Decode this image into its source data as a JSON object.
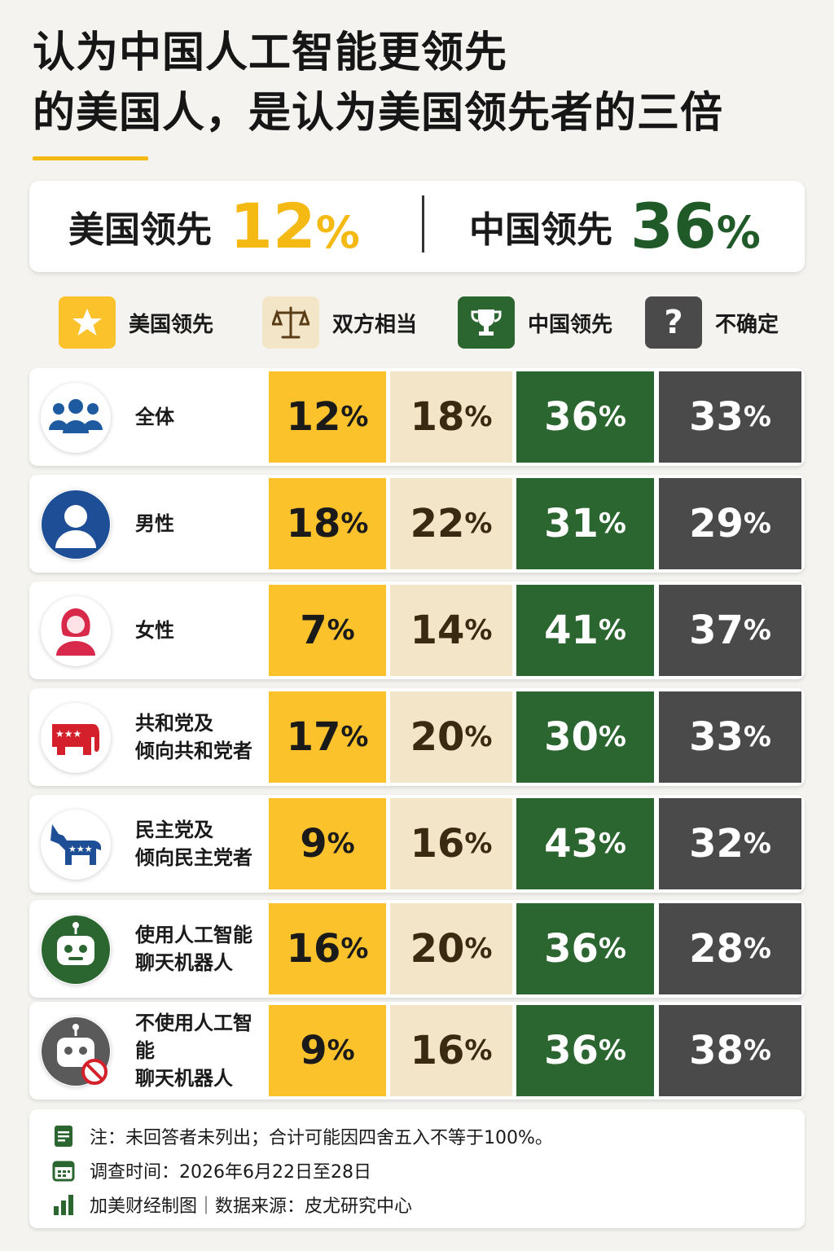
{
  "title": {
    "line1": "认为中国人工智能更领先",
    "line2": "的美国人，是认为美国领先者的三倍"
  },
  "summary": {
    "us_label": "美国领先",
    "us_value": "12",
    "cn_label": "中国领先",
    "cn_value": "36",
    "pct": "%"
  },
  "legend": [
    {
      "label": "美国领先",
      "icon": "star-icon",
      "color": "#fbc22c"
    },
    {
      "label": "双方相当",
      "icon": "scale-icon",
      "color": "#f3e6c8"
    },
    {
      "label": "中国领先",
      "icon": "trophy-icon",
      "color": "#2b6530"
    },
    {
      "label": "不确定",
      "icon": "question-icon",
      "color": "#4a4a4b"
    }
  ],
  "chart_data": {
    "type": "table",
    "columns": [
      "美国领先",
      "双方相当",
      "中国领先",
      "不确定"
    ],
    "unit": "%",
    "rows": [
      {
        "label": "全体",
        "icon": "group-icon",
        "values": [
          12,
          18,
          36,
          33
        ]
      },
      {
        "label": "男性",
        "icon": "male-icon",
        "values": [
          18,
          22,
          31,
          29
        ]
      },
      {
        "label": "女性",
        "icon": "female-icon",
        "values": [
          7,
          14,
          41,
          37
        ]
      },
      {
        "label": "共和党及\n倾向共和党者",
        "icon": "elephant-icon",
        "values": [
          17,
          20,
          30,
          33
        ]
      },
      {
        "label": "民主党及\n倾向民主党者",
        "icon": "donkey-icon",
        "values": [
          9,
          16,
          43,
          32
        ]
      },
      {
        "label": "使用人工智能\n聊天机器人",
        "icon": "robot-icon",
        "values": [
          16,
          20,
          36,
          28
        ]
      },
      {
        "label": "不使用人工智能\n聊天机器人",
        "icon": "robot-no-icon",
        "values": [
          9,
          16,
          36,
          38
        ]
      }
    ]
  },
  "footer": {
    "note": "注：未回答者未列出；合计可能因四舍五入不等于100%。",
    "date": "调查时间：2026年6月22日至28日",
    "source": "加美财经制图｜数据来源：皮尤研究中心"
  }
}
